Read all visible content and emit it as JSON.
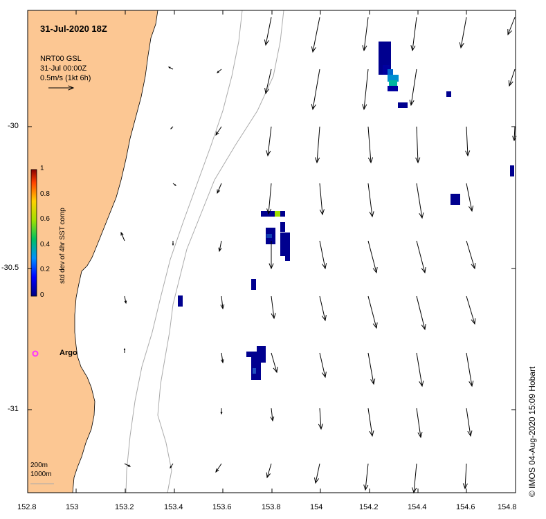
{
  "title": "31-Jul-2020 18Z",
  "legend": {
    "source": "NRT00 GSL",
    "time": "31-Jul 00:00Z",
    "scale_label": "0.5m/s (1kt 6h)"
  },
  "colorbar": {
    "title": "std dev of 4hr SST comp",
    "ticks": [
      "1",
      "0.8",
      "0.6",
      "0.4",
      "0.2",
      "0"
    ]
  },
  "argo": {
    "label": "Argo",
    "color": "#ff33ff"
  },
  "contours": {
    "labels": [
      "200m",
      "1000m"
    ]
  },
  "credit": "© IMOS 04-Aug-2020 15:09 Hobart",
  "axes": {
    "x_ticks": [
      "152.8",
      "153",
      "153.2",
      "153.4",
      "153.6",
      "153.8",
      "154",
      "154.2",
      "154.4",
      "154.6",
      "154.8"
    ],
    "y_ticks": [
      "-30",
      "-30.5",
      "-31"
    ]
  },
  "colors": {
    "land": "#fcc793",
    "contour": "#aaaaaa",
    "colorbar_high": "#880000",
    "colorbar_low": "#000080"
  }
}
